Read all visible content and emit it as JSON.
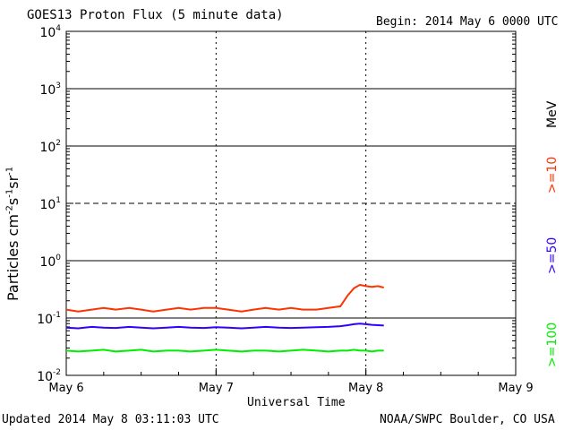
{
  "header": {
    "title": "GOES13 Proton Flux (5 minute data)",
    "begin": "Begin: 2014 May 6 0000 UTC"
  },
  "footer": {
    "updated": "Updated 2014 May  8 03:11:03 UTC",
    "source": "NOAA/SWPC Boulder, CO USA"
  },
  "axis": {
    "xlabel": "Universal Time",
    "ylabel_base": "Particles cm",
    "ylabel_sup1": "-2",
    "ylabel_mid1": "s",
    "ylabel_sup2": "-1",
    "ylabel_mid2": "sr",
    "ylabel_sup3": "-1"
  },
  "legend": {
    "unit": "MeV",
    "items": [
      {
        "label": ">=10",
        "color": "#ff3300"
      },
      {
        "label": ">=50",
        "color": "#3300ff"
      },
      {
        "label": ">=100",
        "color": "#00ee00"
      }
    ]
  },
  "chart_data": {
    "type": "line",
    "title": "GOES13 Proton Flux (5 minute data)",
    "xlabel": "Universal Time",
    "ylabel": "Particles cm^-2 s^-1 sr^-1",
    "yscale": "log",
    "ylim": [
      0.01,
      10000
    ],
    "y_ticks": [
      {
        "value": 0.01,
        "base": "10",
        "exp": "-2"
      },
      {
        "value": 0.1,
        "base": "10",
        "exp": "-1"
      },
      {
        "value": 1,
        "base": "10",
        "exp": "0"
      },
      {
        "value": 10,
        "base": "10",
        "exp": "1"
      },
      {
        "value": 100,
        "base": "10",
        "exp": "2"
      },
      {
        "value": 1000,
        "base": "10",
        "exp": "3"
      },
      {
        "value": 10000,
        "base": "10",
        "exp": "4"
      }
    ],
    "xlim_days": [
      0,
      3
    ],
    "x_ticks": [
      {
        "day": 0,
        "label": "May 6"
      },
      {
        "day": 1,
        "label": "May 7"
      },
      {
        "day": 2,
        "label": "May 8"
      },
      {
        "day": 3,
        "label": "May 9"
      }
    ],
    "thresholds": [
      {
        "value": 10,
        "style": "dashed"
      }
    ],
    "series": [
      {
        "name": ">=10 MeV",
        "color": "#ff3300",
        "points": [
          [
            0.0,
            0.14
          ],
          [
            0.08,
            0.13
          ],
          [
            0.17,
            0.14
          ],
          [
            0.25,
            0.15
          ],
          [
            0.33,
            0.14
          ],
          [
            0.42,
            0.15
          ],
          [
            0.5,
            0.14
          ],
          [
            0.58,
            0.13
          ],
          [
            0.67,
            0.14
          ],
          [
            0.75,
            0.15
          ],
          [
            0.83,
            0.14
          ],
          [
            0.92,
            0.15
          ],
          [
            1.0,
            0.15
          ],
          [
            1.08,
            0.14
          ],
          [
            1.17,
            0.13
          ],
          [
            1.25,
            0.14
          ],
          [
            1.33,
            0.15
          ],
          [
            1.42,
            0.14
          ],
          [
            1.5,
            0.15
          ],
          [
            1.58,
            0.14
          ],
          [
            1.67,
            0.14
          ],
          [
            1.75,
            0.15
          ],
          [
            1.83,
            0.16
          ],
          [
            1.88,
            0.25
          ],
          [
            1.92,
            0.33
          ],
          [
            1.96,
            0.38
          ],
          [
            2.0,
            0.36
          ],
          [
            2.04,
            0.35
          ],
          [
            2.08,
            0.36
          ],
          [
            2.12,
            0.34
          ]
        ]
      },
      {
        "name": ">=50 MeV",
        "color": "#3300ff",
        "points": [
          [
            0.0,
            0.068
          ],
          [
            0.08,
            0.066
          ],
          [
            0.17,
            0.07
          ],
          [
            0.25,
            0.068
          ],
          [
            0.33,
            0.067
          ],
          [
            0.42,
            0.07
          ],
          [
            0.5,
            0.068
          ],
          [
            0.58,
            0.066
          ],
          [
            0.67,
            0.068
          ],
          [
            0.75,
            0.07
          ],
          [
            0.83,
            0.068
          ],
          [
            0.92,
            0.067
          ],
          [
            1.0,
            0.069
          ],
          [
            1.08,
            0.068
          ],
          [
            1.17,
            0.066
          ],
          [
            1.25,
            0.068
          ],
          [
            1.33,
            0.07
          ],
          [
            1.42,
            0.068
          ],
          [
            1.5,
            0.067
          ],
          [
            1.58,
            0.068
          ],
          [
            1.67,
            0.069
          ],
          [
            1.75,
            0.07
          ],
          [
            1.83,
            0.072
          ],
          [
            1.88,
            0.075
          ],
          [
            1.92,
            0.078
          ],
          [
            1.96,
            0.08
          ],
          [
            2.0,
            0.078
          ],
          [
            2.04,
            0.076
          ],
          [
            2.08,
            0.075
          ],
          [
            2.12,
            0.074
          ]
        ]
      },
      {
        "name": ">=100 MeV",
        "color": "#00ee00",
        "points": [
          [
            0.0,
            0.027
          ],
          [
            0.08,
            0.026
          ],
          [
            0.17,
            0.027
          ],
          [
            0.25,
            0.028
          ],
          [
            0.33,
            0.026
          ],
          [
            0.42,
            0.027
          ],
          [
            0.5,
            0.028
          ],
          [
            0.58,
            0.026
          ],
          [
            0.67,
            0.027
          ],
          [
            0.75,
            0.027
          ],
          [
            0.83,
            0.026
          ],
          [
            0.92,
            0.027
          ],
          [
            1.0,
            0.028
          ],
          [
            1.08,
            0.027
          ],
          [
            1.17,
            0.026
          ],
          [
            1.25,
            0.027
          ],
          [
            1.33,
            0.027
          ],
          [
            1.42,
            0.026
          ],
          [
            1.5,
            0.027
          ],
          [
            1.58,
            0.028
          ],
          [
            1.67,
            0.027
          ],
          [
            1.75,
            0.026
          ],
          [
            1.83,
            0.027
          ],
          [
            1.88,
            0.027
          ],
          [
            1.92,
            0.028
          ],
          [
            1.96,
            0.027
          ],
          [
            2.0,
            0.027
          ],
          [
            2.04,
            0.026
          ],
          [
            2.08,
            0.027
          ],
          [
            2.12,
            0.027
          ]
        ]
      }
    ]
  }
}
